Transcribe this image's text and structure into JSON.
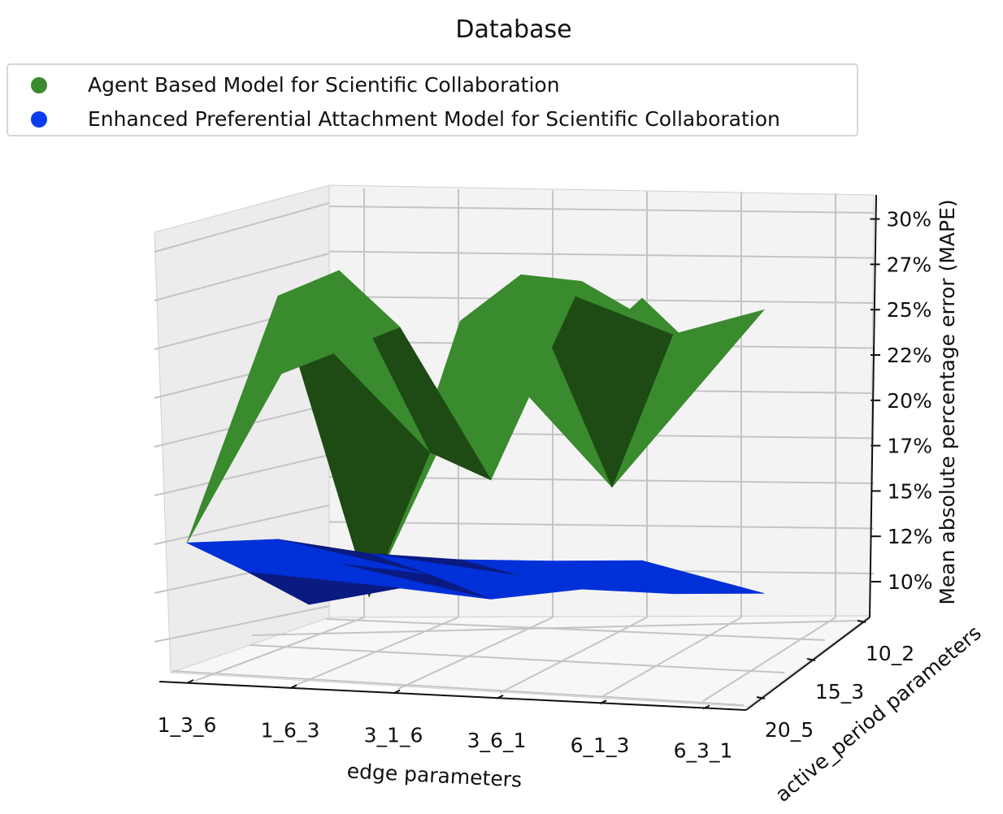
{
  "chart_data": {
    "type": "surface3d",
    "title": "Database",
    "xlabel": "edge parameters",
    "ylabel": "active_period parameters",
    "zlabel": "Mean absolute percentage error (MAPE)",
    "x_categories": [
      "1_3_6",
      "1_6_3",
      "3_1_6",
      "3_6_1",
      "6_1_3",
      "6_3_1"
    ],
    "y_categories": [
      "10_2",
      "15_3",
      "20_5"
    ],
    "z_ticks": [
      "10%",
      "12%",
      "15%",
      "17%",
      "20%",
      "22%",
      "25%",
      "27%",
      "30%"
    ],
    "legend_position": "top-left",
    "series": [
      {
        "name": "Agent Based Model for Scientific Collaboration",
        "color": "#3a8a2e",
        "dark_color": "#1e4a14",
        "values": [
          [
            0.09,
            0.205,
            0.24
          ],
          [
            0.245,
            0.279,
            0.262
          ],
          [
            0.06,
            0.168,
            0.169
          ],
          [
            0.233,
            0.28,
            0.294
          ],
          [
            0.198,
            0.15,
            0.263
          ],
          [
            0.251,
            0.233,
            0.28
          ]
        ]
      },
      {
        "name": "Enhanced Preferential Attachment Model for Scientific Collaboration",
        "color": "#0030d8",
        "dark_color": "#0a1a80",
        "values": [
          [
            0.09,
            0.09,
            0.088
          ],
          [
            0.094,
            0.097,
            0.1
          ],
          [
            0.087,
            0.092,
            0.095
          ],
          [
            0.085,
            0.093,
            0.103
          ],
          [
            0.086,
            0.095,
            0.102
          ],
          [
            0.088,
            0.096,
            0.104
          ]
        ]
      }
    ]
  }
}
